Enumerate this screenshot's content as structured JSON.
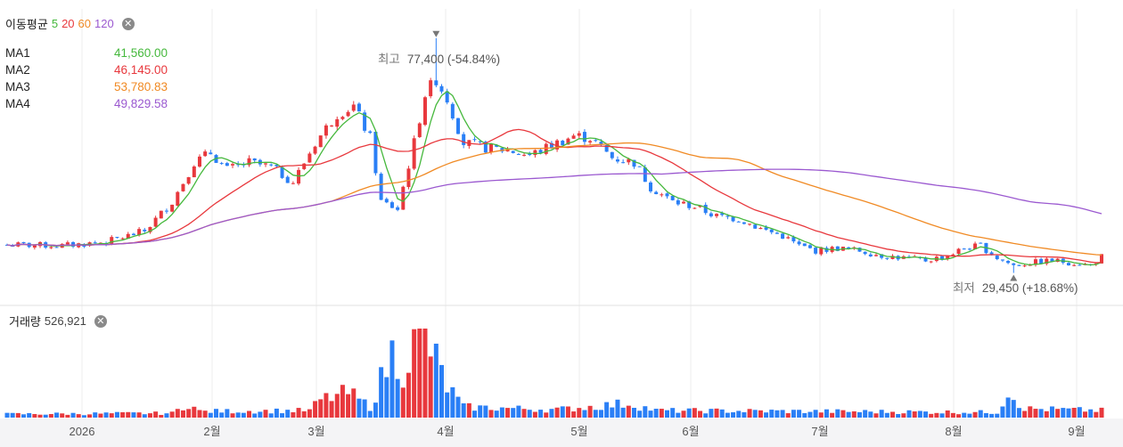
{
  "ma_panel": {
    "title": "이동평균",
    "periods": [
      "5",
      "20",
      "60",
      "120"
    ],
    "close_icon": "close-icon",
    "rows": [
      {
        "label": "MA1",
        "value": "41,560.00"
      },
      {
        "label": "MA2",
        "value": "46,145.00"
      },
      {
        "label": "MA3",
        "value": "53,780.83"
      },
      {
        "label": "MA4",
        "value": "49,829.58"
      }
    ]
  },
  "volume_panel": {
    "title": "거래량",
    "value": "526,921",
    "close_icon": "close-icon"
  },
  "annotations": {
    "high": {
      "label": "최고",
      "value": "77,400 (-54.84%)"
    },
    "low": {
      "label": "최저",
      "value": "29,450 (+18.68%)"
    }
  },
  "colors": {
    "up": "#e8383d",
    "down": "#2a7ff6",
    "ma5": "#45b83c",
    "ma20": "#e8383d",
    "ma60": "#f08a24",
    "ma120": "#9b59d0",
    "grid": "#ececec"
  },
  "chart_data": {
    "type": "candlestick",
    "x_axis": {
      "labels": [
        "2026",
        "2월",
        "3월",
        "4월",
        "5월",
        "6월",
        "7월",
        "8월",
        "9월"
      ]
    },
    "y_range": [
      23000,
      83000
    ],
    "price_keypoints": [
      {
        "i": 0,
        "p": 35200
      },
      {
        "i": 10,
        "p": 35000
      },
      {
        "i": 18,
        "p": 35800
      },
      {
        "i": 25,
        "p": 38000
      },
      {
        "i": 30,
        "p": 44000
      },
      {
        "i": 34,
        "p": 52000
      },
      {
        "i": 37,
        "p": 54000
      },
      {
        "i": 40,
        "p": 50500
      },
      {
        "i": 44,
        "p": 52000
      },
      {
        "i": 48,
        "p": 51000
      },
      {
        "i": 52,
        "p": 48000
      },
      {
        "i": 56,
        "p": 56000
      },
      {
        "i": 60,
        "p": 62000
      },
      {
        "i": 63,
        "p": 63500
      },
      {
        "i": 66,
        "p": 57000
      },
      {
        "i": 68,
        "p": 44000
      },
      {
        "i": 71,
        "p": 42500
      },
      {
        "i": 74,
        "p": 56000
      },
      {
        "i": 76,
        "p": 66000
      },
      {
        "i": 78,
        "p": 69000
      },
      {
        "i": 80,
        "p": 65000
      },
      {
        "i": 83,
        "p": 56000
      },
      {
        "i": 87,
        "p": 55000
      },
      {
        "i": 91,
        "p": 54500
      },
      {
        "i": 95,
        "p": 53500
      },
      {
        "i": 99,
        "p": 55500
      },
      {
        "i": 103,
        "p": 57500
      },
      {
        "i": 106,
        "p": 57000
      },
      {
        "i": 110,
        "p": 53000
      },
      {
        "i": 114,
        "p": 52000
      },
      {
        "i": 117,
        "p": 47000
      },
      {
        "i": 121,
        "p": 44000
      },
      {
        "i": 125,
        "p": 43000
      },
      {
        "i": 129,
        "p": 41000
      },
      {
        "i": 133,
        "p": 40500
      },
      {
        "i": 137,
        "p": 38500
      },
      {
        "i": 141,
        "p": 37000
      },
      {
        "i": 144,
        "p": 35000
      },
      {
        "i": 147,
        "p": 34000
      },
      {
        "i": 151,
        "p": 34500
      },
      {
        "i": 155,
        "p": 34000
      },
      {
        "i": 159,
        "p": 33000
      },
      {
        "i": 163,
        "p": 32500
      },
      {
        "i": 167,
        "p": 32000
      },
      {
        "i": 171,
        "p": 33000
      },
      {
        "i": 174,
        "p": 34500
      },
      {
        "i": 177,
        "p": 35000
      },
      {
        "i": 180,
        "p": 32500
      },
      {
        "i": 183,
        "p": 31000
      },
      {
        "i": 186,
        "p": 31500
      },
      {
        "i": 190,
        "p": 32000
      },
      {
        "i": 194,
        "p": 31500
      },
      {
        "i": 197,
        "p": 31000
      },
      {
        "i": 199,
        "p": 32800
      }
    ],
    "volume_keypoints": [
      {
        "i": 0,
        "v": 0.04
      },
      {
        "i": 30,
        "v": 0.05
      },
      {
        "i": 33,
        "v": 0.16
      },
      {
        "i": 35,
        "v": 0.07
      },
      {
        "i": 55,
        "v": 0.08
      },
      {
        "i": 57,
        "v": 0.2
      },
      {
        "i": 62,
        "v": 0.28
      },
      {
        "i": 66,
        "v": 0.12
      },
      {
        "i": 70,
        "v": 0.72
      },
      {
        "i": 72,
        "v": 0.55
      },
      {
        "i": 75,
        "v": 0.95
      },
      {
        "i": 77,
        "v": 0.78
      },
      {
        "i": 80,
        "v": 0.35
      },
      {
        "i": 83,
        "v": 0.12
      },
      {
        "i": 100,
        "v": 0.09
      },
      {
        "i": 113,
        "v": 0.16
      },
      {
        "i": 118,
        "v": 0.08
      },
      {
        "i": 180,
        "v": 0.06
      },
      {
        "i": 182,
        "v": 0.3
      },
      {
        "i": 185,
        "v": 0.1
      },
      {
        "i": 199,
        "v": 0.08
      }
    ]
  }
}
